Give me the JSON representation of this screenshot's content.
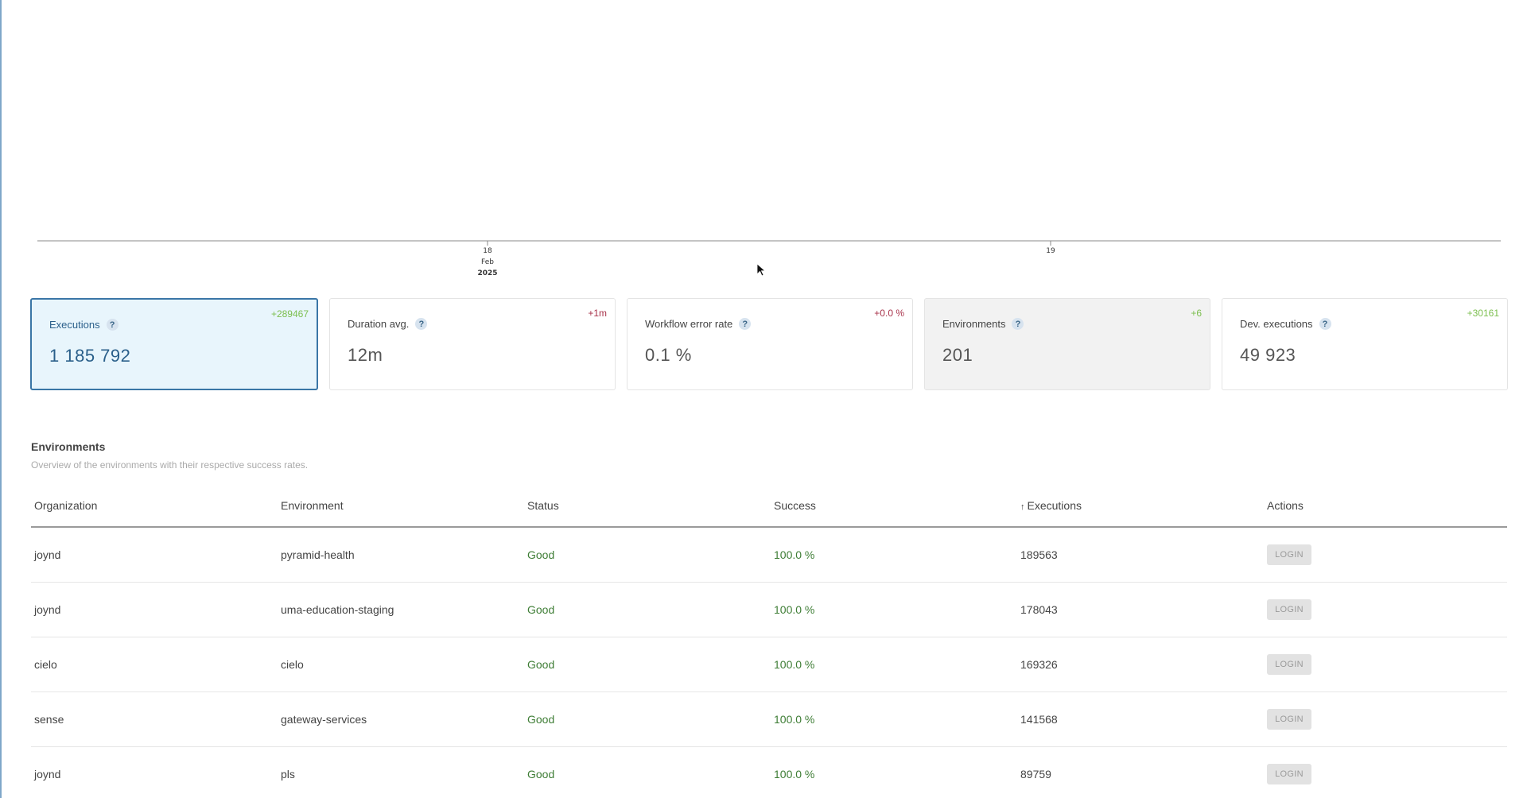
{
  "timeline": {
    "ticks": [
      {
        "day": "18",
        "month": "Feb",
        "year": "2025"
      },
      {
        "day": "19",
        "month": "",
        "year": ""
      }
    ]
  },
  "cards": [
    {
      "title": "Executions",
      "value": "1 185 792",
      "delta": "+289467",
      "delta_type": "positive",
      "state": "selected"
    },
    {
      "title": "Duration avg.",
      "value": "12m",
      "delta": "+1m",
      "delta_type": "negative",
      "state": "normal"
    },
    {
      "title": "Workflow error rate",
      "value": "0.1 %",
      "delta": "+0.0 %",
      "delta_type": "negative",
      "state": "normal"
    },
    {
      "title": "Environments",
      "value": "201",
      "delta": "+6",
      "delta_type": "positive",
      "state": "muted"
    },
    {
      "title": "Dev. executions",
      "value": "49 923",
      "delta": "+30161",
      "delta_type": "positive",
      "state": "normal"
    }
  ],
  "help_glyph": "?",
  "environments": {
    "title": "Environments",
    "description": "Overview of the environments with their respective success rates.",
    "columns": {
      "organization": "Organization",
      "environment": "Environment",
      "status": "Status",
      "success": "Success",
      "executions": "Executions",
      "actions": "Actions"
    },
    "sort_indicator": "↑",
    "login_label": "LOGIN",
    "rows": [
      {
        "organization": "joynd",
        "environment": "pyramid-health",
        "status": "Good",
        "success": "100.0 %",
        "executions": "189563"
      },
      {
        "organization": "joynd",
        "environment": "uma-education-staging",
        "status": "Good",
        "success": "100.0 %",
        "executions": "178043"
      },
      {
        "organization": "cielo",
        "environment": "cielo",
        "status": "Good",
        "success": "100.0 %",
        "executions": "169326"
      },
      {
        "organization": "sense",
        "environment": "gateway-services",
        "status": "Good",
        "success": "100.0 %",
        "executions": "141568"
      },
      {
        "organization": "joynd",
        "environment": "pls",
        "status": "Good",
        "success": "100.0 %",
        "executions": "89759"
      }
    ]
  },
  "colors": {
    "accent": "#3a76a6",
    "good": "#3e7d35",
    "delta_positive": "#7cbf4f",
    "delta_negative": "#a8324a"
  }
}
